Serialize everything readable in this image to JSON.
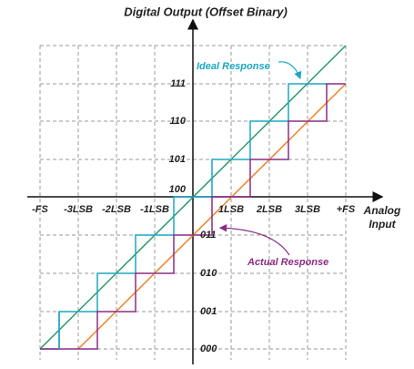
{
  "title": "Digital Output (Offset Binary)",
  "x_axis": {
    "label_lines": [
      "Analog",
      "Input"
    ],
    "ticks": [
      "-FS",
      "-3LSB",
      "-2LSB",
      "-1LSB",
      "1LSB",
      "2LSB",
      "3LSB",
      "+FS"
    ]
  },
  "y_axis": {
    "ticks": [
      "000",
      "001",
      "010",
      "011",
      "100",
      "101",
      "110",
      "111"
    ]
  },
  "annotations": {
    "ideal": "Ideal Response",
    "actual": "Actual Response"
  }
}
